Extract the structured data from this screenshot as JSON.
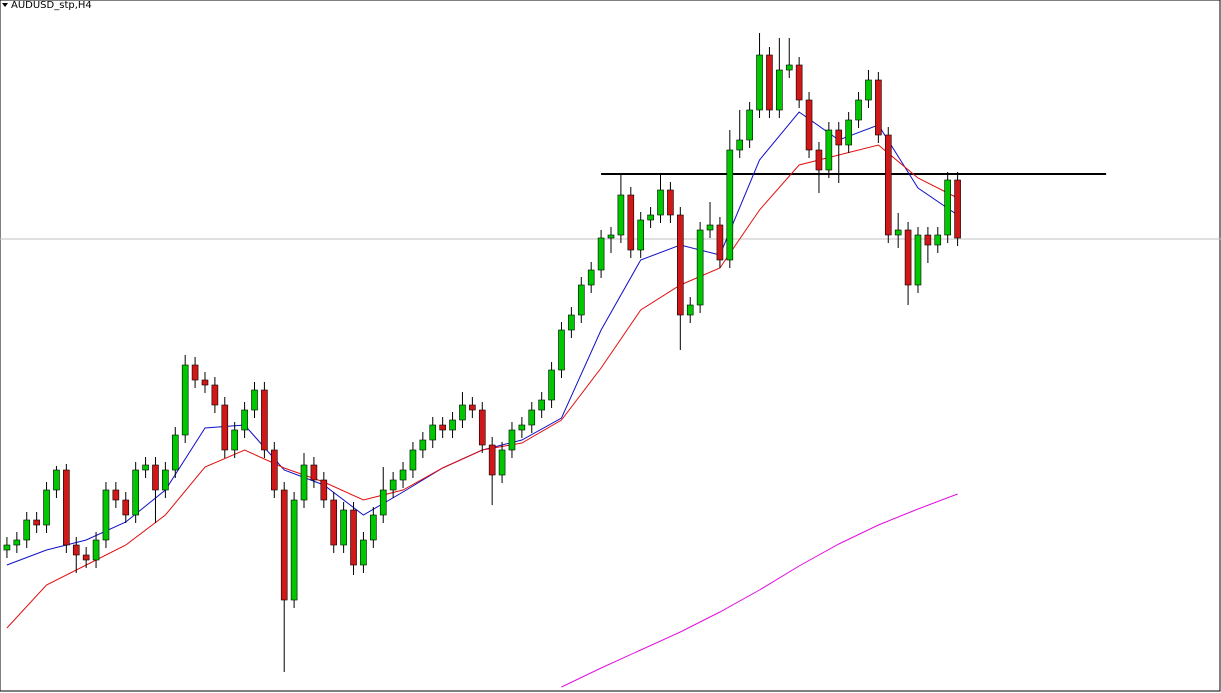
{
  "chart_data": {
    "type": "candlestick",
    "title": "AUDUSD_stp,H4",
    "xlim": [
      -0.7,
      122.6
    ],
    "ylim": [
      0,
      693
    ],
    "up_color": "#00c800",
    "down_color": "#d01818",
    "wick_color": "#000000",
    "open": [
      143,
      148,
      153,
      173,
      168,
      203,
      223,
      148,
      138,
      133,
      153,
      203,
      193,
      178,
      223,
      228,
      203,
      223,
      258,
      328,
      313,
      308,
      288,
      243,
      263,
      283,
      303,
      243,
      203,
      93,
      193,
      228,
      213,
      193,
      148,
      183,
      128,
      153,
      178,
      203,
      213,
      223,
      243,
      253,
      268,
      263,
      273,
      288,
      283,
      248,
      218,
      243,
      263,
      268,
      283,
      293,
      323,
      363,
      378,
      408,
      423,
      455,
      458,
      498,
      443,
      473,
      478,
      503,
      478,
      378,
      388,
      463,
      468,
      433,
      543,
      553,
      583,
      638,
      583,
      623,
      628,
      593,
      543,
      523,
      563,
      548,
      573,
      593,
      613,
      558,
      458,
      463,
      408,
      458,
      448,
      458,
      513
    ],
    "close": [
      148,
      153,
      173,
      168,
      203,
      223,
      148,
      138,
      133,
      153,
      203,
      193,
      178,
      223,
      228,
      203,
      223,
      258,
      328,
      313,
      308,
      288,
      243,
      263,
      283,
      303,
      243,
      203,
      93,
      193,
      228,
      213,
      193,
      148,
      183,
      128,
      153,
      178,
      203,
      213,
      223,
      243,
      253,
      268,
      263,
      273,
      288,
      283,
      248,
      218,
      243,
      263,
      268,
      283,
      293,
      323,
      363,
      378,
      408,
      423,
      455,
      458,
      498,
      443,
      473,
      478,
      503,
      478,
      378,
      388,
      463,
      468,
      433,
      543,
      553,
      583,
      638,
      583,
      623,
      628,
      593,
      543,
      523,
      563,
      548,
      573,
      593,
      613,
      558,
      458,
      463,
      408,
      458,
      448,
      458,
      513,
      455
    ],
    "high": [
      156,
      161,
      181,
      181,
      211,
      227,
      229,
      156,
      146,
      161,
      211,
      211,
      201,
      231,
      236,
      236,
      231,
      266,
      338,
      336,
      321,
      316,
      296,
      271,
      291,
      311,
      311,
      251,
      211,
      201,
      240,
      236,
      221,
      201,
      191,
      191,
      161,
      186,
      226,
      221,
      231,
      251,
      261,
      276,
      276,
      281,
      301,
      296,
      291,
      256,
      251,
      271,
      276,
      291,
      301,
      331,
      371,
      386,
      416,
      431,
      463,
      466,
      520,
      506,
      481,
      486,
      518,
      511,
      486,
      396,
      471,
      491,
      476,
      563,
      583,
      591,
      660,
      646,
      655,
      655,
      636,
      601,
      551,
      571,
      571,
      581,
      601,
      623,
      621,
      566,
      480,
      471,
      466,
      466,
      466,
      521,
      521
    ],
    "low": [
      135,
      140,
      145,
      160,
      160,
      195,
      140,
      120,
      125,
      125,
      145,
      185,
      170,
      170,
      215,
      170,
      195,
      215,
      250,
      305,
      300,
      280,
      235,
      235,
      255,
      275,
      235,
      195,
      21,
      85,
      185,
      205,
      185,
      140,
      140,
      118,
      120,
      145,
      170,
      195,
      205,
      215,
      235,
      245,
      255,
      255,
      265,
      275,
      240,
      188,
      210,
      235,
      255,
      260,
      275,
      285,
      315,
      355,
      370,
      400,
      415,
      440,
      450,
      435,
      435,
      465,
      470,
      470,
      343,
      370,
      380,
      455,
      425,
      425,
      535,
      545,
      575,
      575,
      575,
      615,
      585,
      535,
      500,
      515,
      510,
      540,
      565,
      585,
      550,
      450,
      445,
      388,
      400,
      430,
      440,
      450,
      447
    ],
    "series": [
      {
        "color": "#1010c8",
        "x": [
          0,
          4,
          8,
          12,
          16,
          20,
          24,
          28,
          32,
          36,
          40,
          44,
          48,
          52,
          56,
          60,
          64,
          68,
          72,
          76,
          80,
          84,
          88,
          92,
          96
        ],
        "values": [
          128,
          143,
          153,
          171,
          203,
          265,
          268,
          223,
          208,
          178,
          201,
          225,
          243,
          253,
          275,
          363,
          433,
          448,
          438,
          533,
          581,
          553,
          568,
          505,
          478
        ]
      },
      {
        "color": "#e01010",
        "x": [
          0,
          4,
          8,
          12,
          16,
          20,
          24,
          28,
          32,
          36,
          40,
          44,
          48,
          52,
          56,
          60,
          64,
          68,
          72,
          76,
          80,
          84,
          88,
          92,
          96
        ],
        "values": [
          65,
          108,
          128,
          148,
          178,
          226,
          243,
          225,
          211,
          193,
          203,
          225,
          243,
          250,
          273,
          325,
          383,
          408,
          425,
          483,
          528,
          538,
          548,
          515,
          495
        ]
      },
      {
        "color": "#e010e0",
        "x": [
          56,
          60,
          64,
          68,
          72,
          76,
          80,
          84,
          88,
          92,
          96
        ],
        "values": [
          6,
          25,
          43,
          61,
          81,
          103,
          127,
          149,
          168,
          184,
          199
        ]
      }
    ],
    "levels": [
      {
        "value": 519,
        "x": [
          60,
          111
        ],
        "color": "#000000"
      },
      {
        "value": 454,
        "x": [
          -0.7,
          122.6
        ],
        "color": "#c0c0c0"
      }
    ]
  }
}
